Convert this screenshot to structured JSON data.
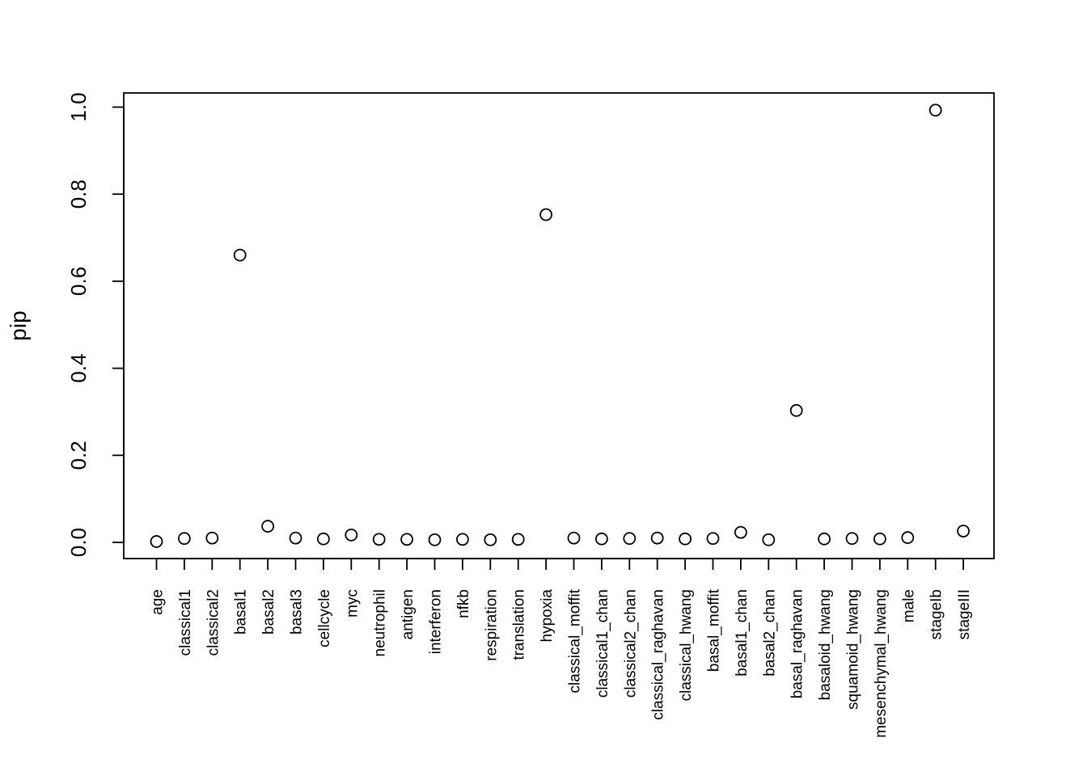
{
  "chart_data": {
    "type": "scatter",
    "title": "",
    "xlabel": "",
    "ylabel": "pip",
    "ylim": [
      0.0,
      1.0
    ],
    "yticks": [
      "0.0",
      "0.2",
      "0.4",
      "0.6",
      "0.8",
      "1.0"
    ],
    "grid": false,
    "legend": "none",
    "marker": "open-circle",
    "marker_color": "#000000",
    "categories": [
      "age",
      "classical1",
      "classical2",
      "basal1",
      "basal2",
      "basal3",
      "cellcycle",
      "myc",
      "neutrophil",
      "antigen",
      "interferon",
      "nfkb",
      "respiration",
      "translation",
      "hypoxia",
      "classical_moffit",
      "classical1_chan",
      "classical2_chan",
      "classical_raghavan",
      "classical_hwang",
      "basal_moffit",
      "basal1_chan",
      "basal2_chan",
      "basal_raghavan",
      "basaloid_hwang",
      "squamoid_hwang",
      "mesenchymal_hwang",
      "male",
      "stageIb",
      "stageIII"
    ],
    "values": [
      0.002,
      0.009,
      0.01,
      0.66,
      0.037,
      0.01,
      0.008,
      0.017,
      0.007,
      0.007,
      0.006,
      0.007,
      0.006,
      0.007,
      0.753,
      0.01,
      0.008,
      0.009,
      0.01,
      0.008,
      0.009,
      0.023,
      0.006,
      0.303,
      0.008,
      0.009,
      0.008,
      0.011,
      0.993,
      0.026
    ]
  }
}
